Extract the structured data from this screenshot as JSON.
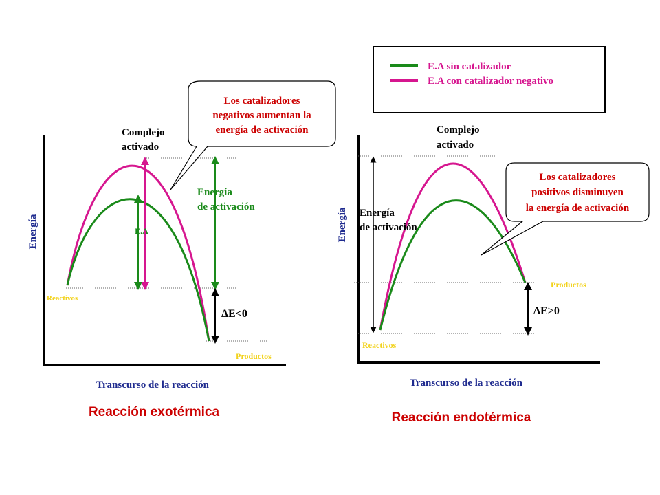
{
  "colors": {
    "axis": "#000000",
    "no_catalyst": "#1a8a1a",
    "neg_catalyst": "#d6168f",
    "red_text": "#cc0000",
    "blue_text": "#1f2b8f",
    "yellow_text": "#f2d21b",
    "leader": "#000000"
  },
  "legend": {
    "item1": "E.A sin catalizador",
    "item2": "E.A con catalizador negativo"
  },
  "left": {
    "callout": [
      "Los catalizadores",
      "negativos aumentan la",
      "energía de activación"
    ],
    "complejo": [
      "Complejo",
      "activado"
    ],
    "energia_activacion": [
      "Energía",
      "de activación"
    ],
    "ea_label": "E.A",
    "y_axis": "Energía",
    "reactivos": "Reactivos",
    "productos": "Productos",
    "delta": "ΔE<0",
    "x_axis": "Transcurso de la reacción",
    "title": "Reacción  exotérmica"
  },
  "right": {
    "callout": [
      "Los catalizadores",
      "positivos disminuyen",
      "la energía de activación"
    ],
    "complejo": [
      "Complejo",
      "activado"
    ],
    "energia_activacion": [
      "Energía",
      "de activación"
    ],
    "y_axis": "Energía",
    "reactivos": "Reactivos",
    "productos": "Productos",
    "delta": "ΔE>0",
    "x_axis": "Transcurso de la reacción",
    "title": "Reacción  endotérmica"
  }
}
